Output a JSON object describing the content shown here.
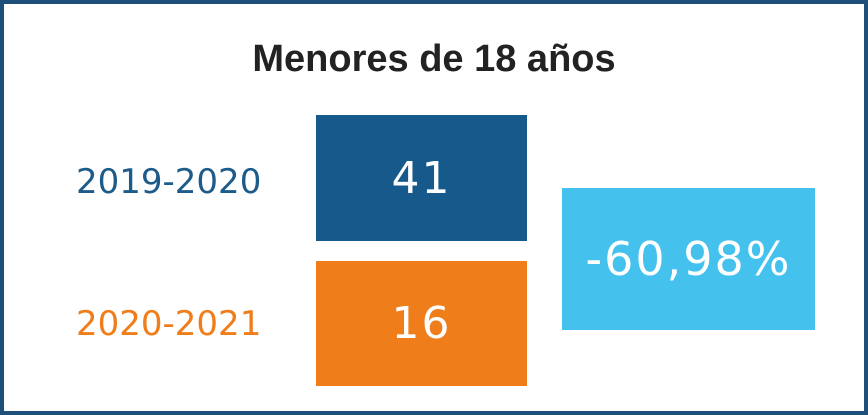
{
  "title": "Menores de 18 años",
  "rows": [
    {
      "period": "2019-2020",
      "value": 41
    },
    {
      "period": "2020-2021",
      "value": 16
    }
  ],
  "change": "-60,98%"
}
